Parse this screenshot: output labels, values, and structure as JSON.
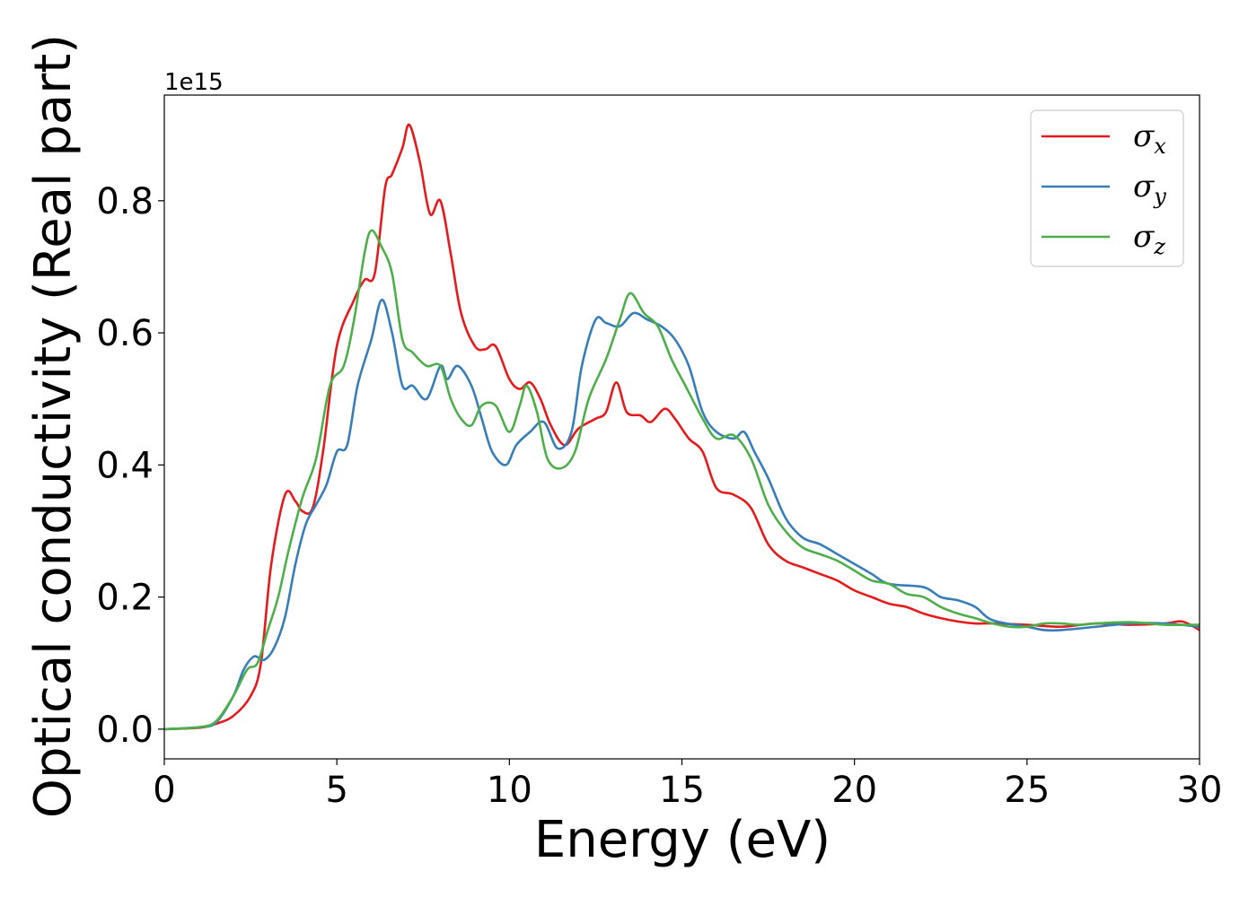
{
  "chart_data": {
    "type": "line",
    "title": "",
    "xlabel": "Energy (eV)",
    "ylabel": "Optical conductivity (Real part)",
    "y_offset_label": "1e15",
    "xlim": [
      0,
      30
    ],
    "ylim": [
      -0.045,
      0.96
    ],
    "x_ticks": [
      0,
      5,
      10,
      15,
      20,
      25,
      30
    ],
    "x_tick_labels": [
      "0",
      "5",
      "10",
      "15",
      "20",
      "25",
      "30"
    ],
    "y_ticks": [
      0.0,
      0.2,
      0.4,
      0.6,
      0.8
    ],
    "y_tick_labels": [
      "0.0",
      "0.2",
      "0.4",
      "0.6",
      "0.8"
    ],
    "grid": false,
    "legend_position": "top-right",
    "series": [
      {
        "name": "σx",
        "symbol": "σ",
        "subscript": "x",
        "color": "#e41a1c",
        "points": [
          [
            0,
            0
          ],
          [
            1,
            0.002
          ],
          [
            1.5,
            0.008
          ],
          [
            2,
            0.02
          ],
          [
            2.5,
            0.05
          ],
          [
            2.8,
            0.1
          ],
          [
            3.1,
            0.25
          ],
          [
            3.5,
            0.355
          ],
          [
            3.8,
            0.345
          ],
          [
            4.0,
            0.33
          ],
          [
            4.3,
            0.335
          ],
          [
            4.6,
            0.42
          ],
          [
            5.0,
            0.58
          ],
          [
            5.5,
            0.65
          ],
          [
            5.8,
            0.68
          ],
          [
            6.1,
            0.69
          ],
          [
            6.4,
            0.82
          ],
          [
            6.6,
            0.84
          ],
          [
            6.9,
            0.88
          ],
          [
            7.1,
            0.915
          ],
          [
            7.4,
            0.86
          ],
          [
            7.7,
            0.78
          ],
          [
            8.0,
            0.8
          ],
          [
            8.3,
            0.72
          ],
          [
            8.6,
            0.63
          ],
          [
            9.0,
            0.58
          ],
          [
            9.3,
            0.575
          ],
          [
            9.6,
            0.58
          ],
          [
            10.0,
            0.53
          ],
          [
            10.3,
            0.515
          ],
          [
            10.6,
            0.525
          ],
          [
            10.9,
            0.5
          ],
          [
            11.2,
            0.46
          ],
          [
            11.6,
            0.43
          ],
          [
            12.0,
            0.455
          ],
          [
            12.5,
            0.47
          ],
          [
            12.8,
            0.48
          ],
          [
            13.1,
            0.525
          ],
          [
            13.4,
            0.48
          ],
          [
            13.8,
            0.475
          ],
          [
            14.1,
            0.465
          ],
          [
            14.5,
            0.485
          ],
          [
            14.8,
            0.47
          ],
          [
            15.2,
            0.44
          ],
          [
            15.6,
            0.42
          ],
          [
            16.0,
            0.365
          ],
          [
            16.5,
            0.355
          ],
          [
            17.0,
            0.335
          ],
          [
            17.5,
            0.28
          ],
          [
            18.0,
            0.255
          ],
          [
            18.5,
            0.245
          ],
          [
            19.0,
            0.235
          ],
          [
            19.5,
            0.225
          ],
          [
            20.0,
            0.21
          ],
          [
            20.5,
            0.2
          ],
          [
            21.0,
            0.19
          ],
          [
            21.5,
            0.185
          ],
          [
            22.0,
            0.175
          ],
          [
            22.5,
            0.168
          ],
          [
            23.0,
            0.163
          ],
          [
            23.5,
            0.16
          ],
          [
            24.0,
            0.16
          ],
          [
            25.0,
            0.158
          ],
          [
            26.0,
            0.155
          ],
          [
            27.0,
            0.16
          ],
          [
            28.0,
            0.158
          ],
          [
            29.0,
            0.16
          ],
          [
            29.5,
            0.163
          ],
          [
            30.0,
            0.15
          ]
        ]
      },
      {
        "name": "σy",
        "symbol": "σ",
        "subscript": "y",
        "color": "#377eb8",
        "points": [
          [
            0,
            0
          ],
          [
            1,
            0.003
          ],
          [
            1.5,
            0.01
          ],
          [
            2,
            0.05
          ],
          [
            2.3,
            0.09
          ],
          [
            2.6,
            0.11
          ],
          [
            2.9,
            0.105
          ],
          [
            3.2,
            0.125
          ],
          [
            3.5,
            0.17
          ],
          [
            3.8,
            0.25
          ],
          [
            4.1,
            0.31
          ],
          [
            4.4,
            0.34
          ],
          [
            4.7,
            0.37
          ],
          [
            5.0,
            0.42
          ],
          [
            5.3,
            0.43
          ],
          [
            5.6,
            0.52
          ],
          [
            6.0,
            0.59
          ],
          [
            6.3,
            0.65
          ],
          [
            6.6,
            0.6
          ],
          [
            6.9,
            0.52
          ],
          [
            7.2,
            0.52
          ],
          [
            7.6,
            0.5
          ],
          [
            8.0,
            0.55
          ],
          [
            8.2,
            0.53
          ],
          [
            8.5,
            0.55
          ],
          [
            8.9,
            0.52
          ],
          [
            9.2,
            0.47
          ],
          [
            9.5,
            0.42
          ],
          [
            9.9,
            0.4
          ],
          [
            10.2,
            0.43
          ],
          [
            10.6,
            0.45
          ],
          [
            11.0,
            0.465
          ],
          [
            11.4,
            0.425
          ],
          [
            11.8,
            0.45
          ],
          [
            12.1,
            0.55
          ],
          [
            12.5,
            0.62
          ],
          [
            12.8,
            0.615
          ],
          [
            13.2,
            0.61
          ],
          [
            13.6,
            0.63
          ],
          [
            14.0,
            0.62
          ],
          [
            14.4,
            0.61
          ],
          [
            14.8,
            0.59
          ],
          [
            15.2,
            0.55
          ],
          [
            15.6,
            0.48
          ],
          [
            16.0,
            0.45
          ],
          [
            16.5,
            0.44
          ],
          [
            16.8,
            0.45
          ],
          [
            17.1,
            0.42
          ],
          [
            17.5,
            0.38
          ],
          [
            18.0,
            0.32
          ],
          [
            18.5,
            0.29
          ],
          [
            19.0,
            0.28
          ],
          [
            19.5,
            0.265
          ],
          [
            20.0,
            0.25
          ],
          [
            20.5,
            0.235
          ],
          [
            21.0,
            0.22
          ],
          [
            22.0,
            0.215
          ],
          [
            22.5,
            0.2
          ],
          [
            23.0,
            0.195
          ],
          [
            23.5,
            0.185
          ],
          [
            24.0,
            0.165
          ],
          [
            25.0,
            0.155
          ],
          [
            25.5,
            0.15
          ],
          [
            26.0,
            0.15
          ],
          [
            27.0,
            0.155
          ],
          [
            28.0,
            0.16
          ],
          [
            29.0,
            0.16
          ],
          [
            30.0,
            0.155
          ]
        ]
      },
      {
        "name": "σz",
        "symbol": "σ",
        "subscript": "z",
        "color": "#4daf4a",
        "points": [
          [
            0,
            0
          ],
          [
            1,
            0.003
          ],
          [
            1.5,
            0.012
          ],
          [
            2,
            0.05
          ],
          [
            2.4,
            0.09
          ],
          [
            2.7,
            0.1
          ],
          [
            3.0,
            0.15
          ],
          [
            3.3,
            0.2
          ],
          [
            3.6,
            0.27
          ],
          [
            4.0,
            0.35
          ],
          [
            4.4,
            0.41
          ],
          [
            4.8,
            0.52
          ],
          [
            5.2,
            0.55
          ],
          [
            5.5,
            0.62
          ],
          [
            5.8,
            0.72
          ],
          [
            6.0,
            0.755
          ],
          [
            6.3,
            0.73
          ],
          [
            6.6,
            0.69
          ],
          [
            6.9,
            0.59
          ],
          [
            7.2,
            0.57
          ],
          [
            7.6,
            0.55
          ],
          [
            8.0,
            0.55
          ],
          [
            8.3,
            0.5
          ],
          [
            8.6,
            0.47
          ],
          [
            8.9,
            0.46
          ],
          [
            9.2,
            0.49
          ],
          [
            9.6,
            0.49
          ],
          [
            10.0,
            0.45
          ],
          [
            10.3,
            0.49
          ],
          [
            10.5,
            0.52
          ],
          [
            10.8,
            0.48
          ],
          [
            11.1,
            0.41
          ],
          [
            11.5,
            0.395
          ],
          [
            11.9,
            0.42
          ],
          [
            12.3,
            0.5
          ],
          [
            12.8,
            0.56
          ],
          [
            13.2,
            0.62
          ],
          [
            13.5,
            0.66
          ],
          [
            13.9,
            0.63
          ],
          [
            14.3,
            0.61
          ],
          [
            14.7,
            0.56
          ],
          [
            15.1,
            0.52
          ],
          [
            15.6,
            0.47
          ],
          [
            16.0,
            0.44
          ],
          [
            16.5,
            0.445
          ],
          [
            17.0,
            0.41
          ],
          [
            17.5,
            0.34
          ],
          [
            18.0,
            0.3
          ],
          [
            18.5,
            0.275
          ],
          [
            19.0,
            0.265
          ],
          [
            19.5,
            0.255
          ],
          [
            20.0,
            0.24
          ],
          [
            20.5,
            0.225
          ],
          [
            21.0,
            0.22
          ],
          [
            21.5,
            0.205
          ],
          [
            22.0,
            0.2
          ],
          [
            22.5,
            0.185
          ],
          [
            23.0,
            0.175
          ],
          [
            23.5,
            0.168
          ],
          [
            24.0,
            0.16
          ],
          [
            24.5,
            0.155
          ],
          [
            25.0,
            0.155
          ],
          [
            25.5,
            0.16
          ],
          [
            26.0,
            0.16
          ],
          [
            26.5,
            0.158
          ],
          [
            27.0,
            0.16
          ],
          [
            28.0,
            0.162
          ],
          [
            29.0,
            0.158
          ],
          [
            30.0,
            0.158
          ]
        ]
      }
    ]
  }
}
